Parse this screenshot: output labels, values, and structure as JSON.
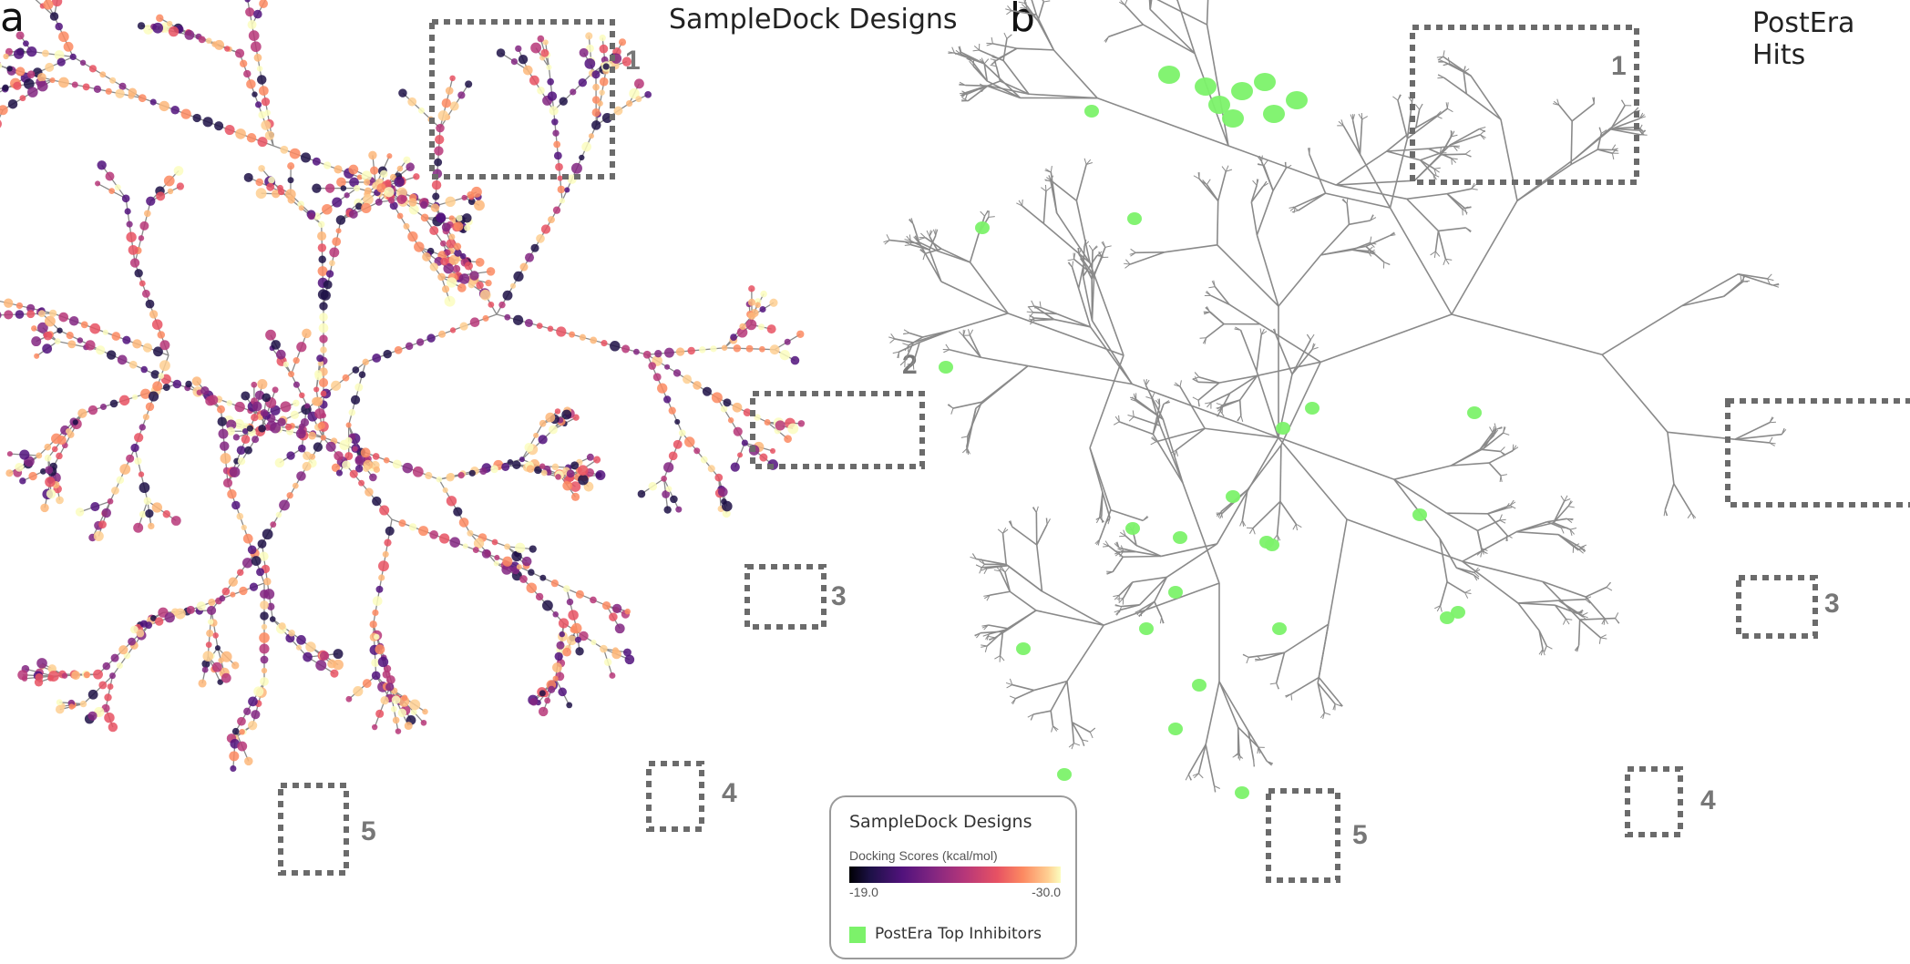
{
  "panel_a": {
    "letter": "a",
    "title": "SampleDock Designs"
  },
  "panel_b": {
    "letter": "b",
    "title": "PostEra Hits"
  },
  "highlight_boxes": [
    "1",
    "2",
    "3",
    "4",
    "5"
  ],
  "legend": {
    "title": "SampleDock Designs",
    "colorbar_label": "Docking Scores (kcal/mol)",
    "tick_min": "-19.0",
    "tick_max": "-30.0",
    "hits_label": "PostEra Top Inhibitors"
  },
  "colors": {
    "branch_line": "#8a8a8a",
    "box_stroke": "#6b6b6b",
    "postera_hit": "#7cf26a",
    "magma": [
      "#1d1147",
      "#51127c",
      "#832681",
      "#b73779",
      "#e75263",
      "#fc8961",
      "#fdb77a",
      "#fecf92",
      "#fcfdbf"
    ]
  }
}
